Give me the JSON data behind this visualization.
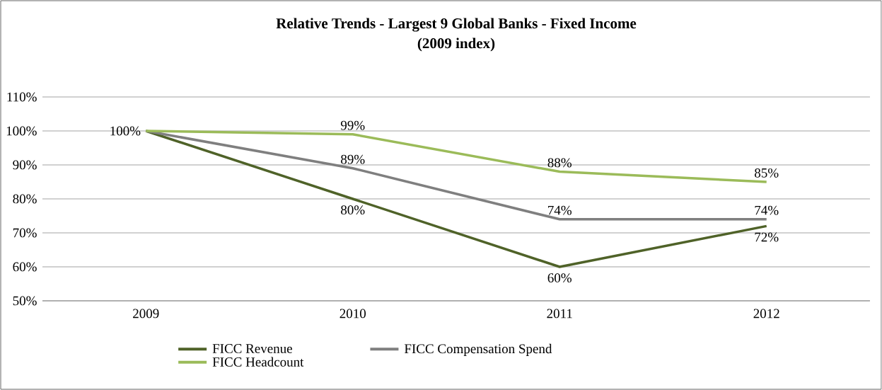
{
  "chart_data": {
    "type": "line",
    "title": "Relative Trends - Largest 9 Global Banks - Fixed Income",
    "subtitle": "(2009 index)",
    "categories": [
      "2009",
      "2010",
      "2011",
      "2012"
    ],
    "series": [
      {
        "name": "FICC Revenue",
        "color": "#4f6228",
        "values": [
          100,
          80,
          60,
          72
        ],
        "value_labels": [
          "100%",
          "80%",
          "60%",
          "72%"
        ]
      },
      {
        "name": "FICC Compensation Spend",
        "color": "#7f7f7f",
        "values": [
          100,
          89,
          74,
          74
        ],
        "value_labels": [
          null,
          "89%",
          "74%",
          "74%"
        ]
      },
      {
        "name": "FICC Headcount",
        "color": "#9bbb59",
        "values": [
          100,
          99,
          88,
          85
        ],
        "value_labels": [
          null,
          "99%",
          "88%",
          "85%"
        ]
      }
    ],
    "ylim": [
      50,
      110
    ],
    "yticks": [
      {
        "value": 50,
        "label": "50%"
      },
      {
        "value": 60,
        "label": "60%"
      },
      {
        "value": 70,
        "label": "70%"
      },
      {
        "value": 80,
        "label": "80%"
      },
      {
        "value": 90,
        "label": "90%"
      },
      {
        "value": 100,
        "label": "100%"
      },
      {
        "value": 110,
        "label": "110%"
      }
    ],
    "grid": "y",
    "legend": "bottom",
    "marker": "none",
    "line_style": "solid"
  }
}
